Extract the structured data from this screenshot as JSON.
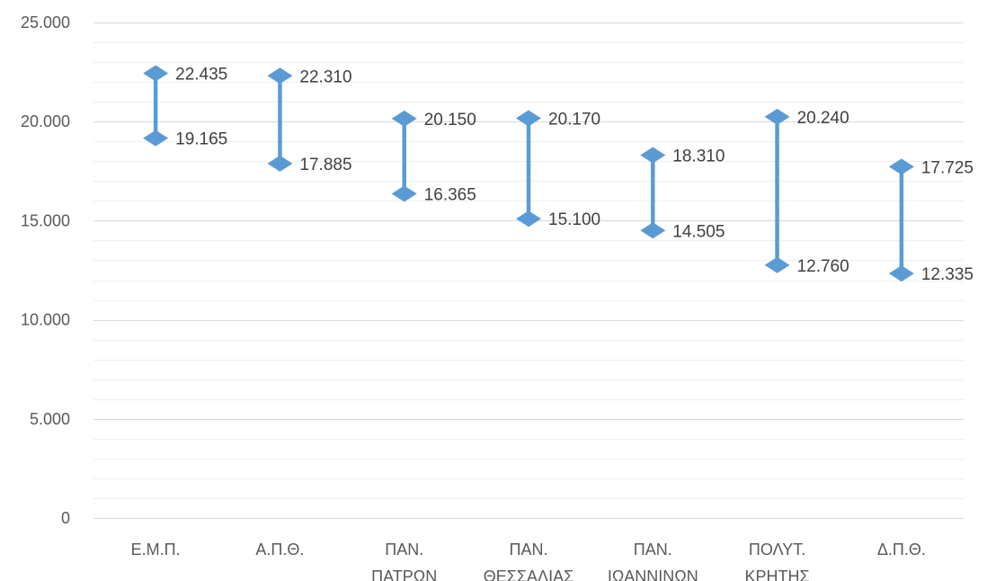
{
  "chart_data": {
    "type": "range",
    "categories": [
      [
        "Ε.Μ.Π."
      ],
      [
        "Α.Π.Θ."
      ],
      [
        "ΠΑΝ.",
        "ΠΑΤΡΩΝ"
      ],
      [
        "ΠΑΝ.",
        "ΘΕΣΣΑΛΙΑΣ"
      ],
      [
        "ΠΑΝ.",
        "ΙΩΑΝΝΙΝΩΝ"
      ],
      [
        "ΠΟΛΥΤ.",
        "ΚΡΗΤΗΣ"
      ],
      [
        "Δ.Π.Θ."
      ]
    ],
    "series": [
      {
        "values": [
          22435,
          22310,
          20150,
          20170,
          18310,
          20240,
          17725
        ]
      },
      {
        "values": [
          19165,
          17885,
          16365,
          15100,
          14505,
          12760,
          12335
        ]
      }
    ],
    "value_labels_high": [
      "22.435",
      "22.310",
      "20.150",
      "20.170",
      "18.310",
      "20.240",
      "17.725"
    ],
    "value_labels_low": [
      "19.165",
      "17.885",
      "16.365",
      "15.100",
      "14.505",
      "12.760",
      "12.335"
    ],
    "ylim": [
      0,
      25000
    ],
    "y_ticks": [
      0,
      5000,
      10000,
      15000,
      20000,
      25000
    ],
    "y_tick_labels": [
      "0",
      "5.000",
      "10.000",
      "15.000",
      "20.000",
      "25.000"
    ],
    "minor_step": 1000,
    "grid": true,
    "legend": "none",
    "colors": {
      "series": "#5b9bd5",
      "major_grid": "#d9d9d9",
      "minor_grid": "#eeeeee",
      "axis_text": "#595959",
      "label_text": "#404040"
    }
  }
}
